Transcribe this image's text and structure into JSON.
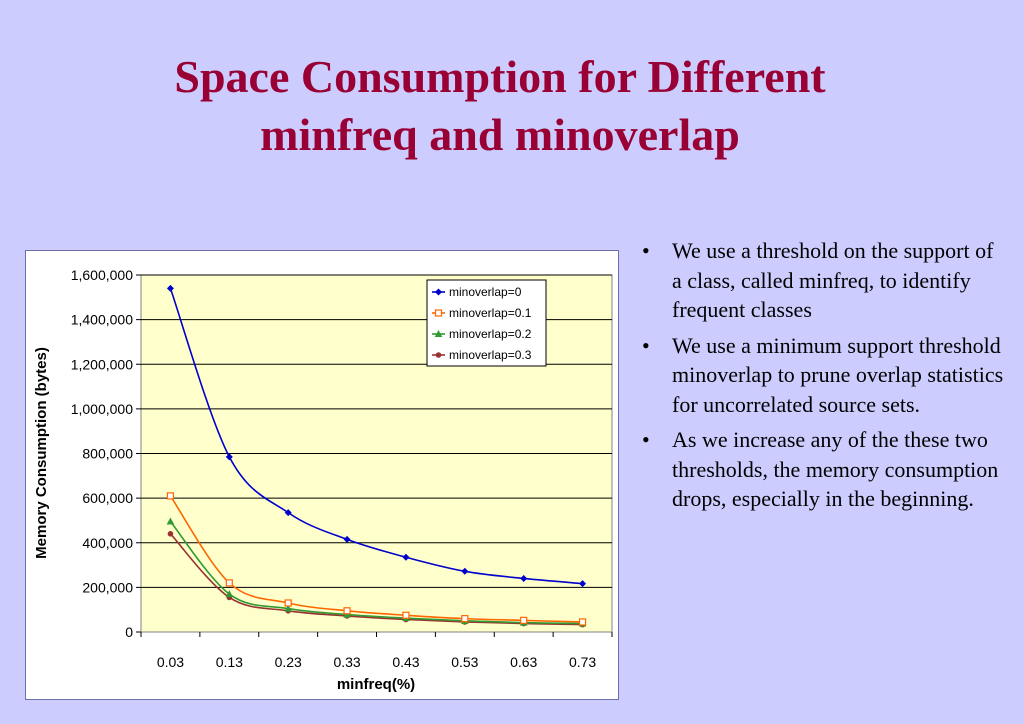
{
  "slide": {
    "title_line1": "Space Consumption for Different",
    "title_line2": "minfreq and minoverlap"
  },
  "bullets": [
    "We use a threshold on the support of a class, called minfreq, to identify frequent classes",
    "We use a minimum support threshold minoverlap to prune overlap statistics for uncorrelated source sets.",
    "As we increase any of the these two thresholds, the memory consumption drops, especially in the beginning."
  ],
  "bullet_glyph": "•",
  "colors": {
    "title": "#990033",
    "background": "#ccccff",
    "plot_area": "#ffffcc"
  },
  "chart_data": {
    "type": "line",
    "title": "",
    "xlabel": "minfreq(%)",
    "ylabel": "Memory Consumption (bytes)",
    "categories": [
      "0.03",
      "0.13",
      "0.23",
      "0.33",
      "0.43",
      "0.53",
      "0.63",
      "0.73"
    ],
    "ylim": [
      0,
      1600000
    ],
    "yticks": [
      "0",
      "200,000",
      "400,000",
      "600,000",
      "800,000",
      "1,000,000",
      "1,200,000",
      "1,400,000",
      "1,600,000"
    ],
    "grid": true,
    "legend_position": "top-right",
    "series": [
      {
        "name": "minoverlap=0",
        "color": "#0000cc",
        "marker": "diamond",
        "values": [
          1540000,
          785000,
          535000,
          415000,
          335000,
          272000,
          240000,
          217000
        ]
      },
      {
        "name": "minoverlap=0.1",
        "color": "#ff6600",
        "marker": "square",
        "values": [
          610000,
          220000,
          130000,
          95000,
          75000,
          60000,
          52000,
          45000
        ]
      },
      {
        "name": "minoverlap=0.2",
        "color": "#339933",
        "marker": "triangle",
        "values": [
          495000,
          170000,
          105000,
          78000,
          62000,
          50000,
          42000,
          38000
        ]
      },
      {
        "name": "minoverlap=0.3",
        "color": "#993333",
        "marker": "circle",
        "values": [
          440000,
          155000,
          95000,
          72000,
          56000,
          45000,
          38000,
          33000
        ]
      }
    ]
  }
}
